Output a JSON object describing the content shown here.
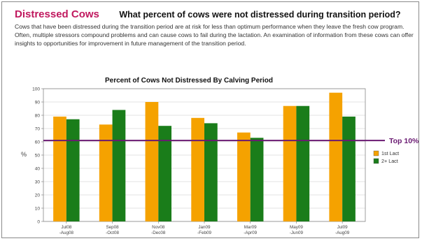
{
  "header": {
    "brand": "Distressed Cows",
    "question": "What percent of cows were not distressed during transition period?"
  },
  "intro": "Cows that have been distressed during the transition period are at risk for less than optimum performance when they leave the fresh cow program.  Often, multiple stressors compound problems and can cause cows to fail during the lactation.  An examination of information from these cows can offer insights to opportunities for improvement in future management of the transition period.",
  "colors": {
    "brand": "#c0185e",
    "series_1st": "#f5a200",
    "series_2plus": "#1a7d1a",
    "reference": "#6a1a72"
  },
  "chart_data": {
    "type": "bar",
    "title": "Percent of Cows Not Distressed By Calving Period",
    "ylabel": "%",
    "xlabel": "",
    "ylim": [
      0,
      100
    ],
    "yticks": [
      0,
      10,
      20,
      30,
      40,
      50,
      60,
      70,
      80,
      90,
      100
    ],
    "grid": true,
    "legend_position": "right",
    "categories": [
      [
        "Jul08",
        "-Aug08"
      ],
      [
        "Sep08",
        "-Oct08"
      ],
      [
        "Nov08",
        "-Dec08"
      ],
      [
        "Jan09",
        "-Feb09"
      ],
      [
        "Mar09",
        "-Apr09"
      ],
      [
        "May09",
        "-Jun09"
      ],
      [
        "Jul09",
        "-Aug09"
      ]
    ],
    "series": [
      {
        "name": "1st Lact",
        "color": "#f5a200",
        "values": [
          79,
          73,
          90,
          78,
          67,
          87,
          97
        ]
      },
      {
        "name": "2+ Lact",
        "color": "#1a7d1a",
        "values": [
          77,
          84,
          72,
          74,
          63,
          87,
          79
        ]
      }
    ],
    "reference_line": {
      "label": "Top 10%",
      "value": 61,
      "color": "#6a1a72"
    }
  }
}
